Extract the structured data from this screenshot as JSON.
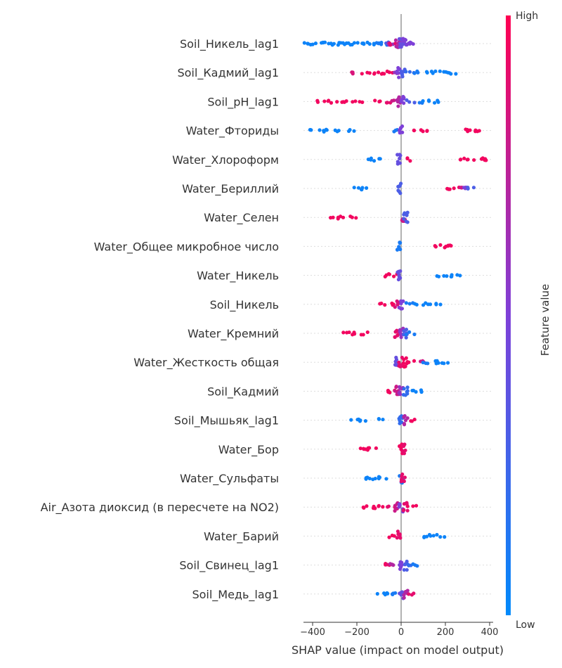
{
  "chart_data": {
    "type": "scatter",
    "subtype": "shap-beeswarm",
    "title": "",
    "xlabel": "SHAP value (impact on model output)",
    "ylabel": "",
    "xlim": [
      -460,
      420
    ],
    "xticks": [
      -400,
      -200,
      0,
      200,
      400
    ],
    "grid": false,
    "colorbar": {
      "title": "Feature value",
      "high_label": "High",
      "low_label": "Low",
      "colors": [
        "#008afb",
        "#7e40d8",
        "#ff0052"
      ]
    },
    "features": [
      {
        "name": "Soil_Никель_lag1",
        "points": [
          [
            -420,
            0.05
          ],
          [
            -390,
            0.05
          ],
          [
            -360,
            0.05
          ],
          [
            -330,
            0.05
          ],
          [
            -300,
            0.05
          ],
          [
            -270,
            0.05
          ],
          [
            -240,
            0.05
          ],
          [
            -210,
            0.05
          ],
          [
            -180,
            0.05
          ],
          [
            -150,
            0.05
          ],
          [
            -120,
            0.05
          ],
          [
            -100,
            0.1
          ],
          [
            -80,
            0.1
          ],
          [
            -60,
            0.3
          ],
          [
            -45,
            0.6
          ],
          [
            -30,
            0.9
          ],
          [
            -15,
            0.7
          ],
          [
            0,
            0.4
          ],
          [
            15,
            0.5
          ],
          [
            30,
            0.4
          ],
          [
            45,
            0.5
          ],
          [
            60,
            0.5
          ]
        ]
      },
      {
        "name": "Soil_Кадмий_lag1",
        "points": [
          [
            -220,
            0.85
          ],
          [
            -160,
            0.95
          ],
          [
            -120,
            0.95
          ],
          [
            -90,
            0.95
          ],
          [
            -60,
            0.95
          ],
          [
            -30,
            0.6
          ],
          [
            -10,
            0.5
          ],
          [
            10,
            0.3
          ],
          [
            40,
            0.2
          ],
          [
            80,
            0.1
          ],
          [
            120,
            0.05
          ],
          [
            160,
            0.05
          ],
          [
            200,
            0.05
          ],
          [
            230,
            0.05
          ]
        ]
      },
      {
        "name": "Soil_pH_lag1",
        "points": [
          [
            -360,
            0.95
          ],
          [
            -320,
            0.95
          ],
          [
            -280,
            0.95
          ],
          [
            -240,
            0.95
          ],
          [
            -190,
            0.95
          ],
          [
            -100,
            0.95
          ],
          [
            -60,
            0.9
          ],
          [
            -30,
            0.8
          ],
          [
            -10,
            0.7
          ],
          [
            10,
            0.5
          ],
          [
            40,
            0.3
          ],
          [
            80,
            0.1
          ],
          [
            120,
            0.05
          ],
          [
            160,
            0.05
          ]
        ]
      },
      {
        "name": "Water_Фториды",
        "points": [
          [
            -390,
            0.05
          ],
          [
            -350,
            0.05
          ],
          [
            -320,
            0.05
          ],
          [
            -280,
            0.05
          ],
          [
            -230,
            0.05
          ],
          [
            -30,
            0.1
          ],
          [
            0,
            0.5
          ],
          [
            80,
            0.95
          ],
          [
            120,
            0.95
          ],
          [
            280,
            0.95
          ],
          [
            320,
            0.95
          ],
          [
            350,
            0.95
          ]
        ]
      },
      {
        "name": "Water_Хлороформ",
        "points": [
          [
            -130,
            0.05
          ],
          [
            -100,
            0.05
          ],
          [
            -10,
            0.4
          ],
          [
            50,
            0.95
          ],
          [
            280,
            0.95
          ],
          [
            320,
            0.95
          ],
          [
            360,
            0.95
          ],
          [
            380,
            0.95
          ]
        ]
      },
      {
        "name": "Water_Бериллий",
        "points": [
          [
            -200,
            0.05
          ],
          [
            -170,
            0.05
          ],
          [
            -10,
            0.3
          ],
          [
            200,
            0.95
          ],
          [
            240,
            0.95
          ],
          [
            280,
            0.8
          ],
          [
            300,
            0.5
          ],
          [
            320,
            0.3
          ]
        ]
      },
      {
        "name": "Water_Селен",
        "points": [
          [
            -300,
            0.95
          ],
          [
            -280,
            0.95
          ],
          [
            -210,
            0.95
          ],
          [
            10,
            0.8
          ],
          [
            20,
            0.3
          ]
        ]
      },
      {
        "name": "Water_Общее микробное число",
        "points": [
          [
            -10,
            0.1
          ],
          [
            170,
            0.95
          ],
          [
            200,
            0.95
          ],
          [
            230,
            0.95
          ]
        ]
      },
      {
        "name": "Water_Никель",
        "points": [
          [
            -60,
            0.95
          ],
          [
            -40,
            0.95
          ],
          [
            -10,
            0.4
          ],
          [
            180,
            0.05
          ],
          [
            220,
            0.05
          ],
          [
            250,
            0.05
          ]
        ]
      },
      {
        "name": "Soil_Никель",
        "points": [
          [
            -80,
            0.95
          ],
          [
            -50,
            0.95
          ],
          [
            -20,
            0.85
          ],
          [
            0,
            0.5
          ],
          [
            40,
            0.1
          ],
          [
            80,
            0.05
          ],
          [
            120,
            0.05
          ],
          [
            170,
            0.05
          ]
        ]
      },
      {
        "name": "Water_Кремний",
        "points": [
          [
            -240,
            0.95
          ],
          [
            -210,
            0.95
          ],
          [
            -170,
            0.95
          ],
          [
            -20,
            0.9
          ],
          [
            0,
            0.6
          ],
          [
            20,
            0.3
          ],
          [
            40,
            0.1
          ]
        ]
      },
      {
        "name": "Water_Жесткость общая",
        "points": [
          [
            -20,
            0.4
          ],
          [
            -5,
            0.9
          ],
          [
            20,
            0.95
          ],
          [
            50,
            0.95
          ],
          [
            80,
            0.8
          ],
          [
            110,
            0.1
          ],
          [
            140,
            0.05
          ],
          [
            180,
            0.05
          ],
          [
            200,
            0.05
          ]
        ]
      },
      {
        "name": "Soil_Кадмий",
        "points": [
          [
            -70,
            0.95
          ],
          [
            -40,
            0.95
          ],
          [
            -20,
            0.8
          ],
          [
            0,
            0.6
          ],
          [
            20,
            0.2
          ],
          [
            50,
            0.05
          ],
          [
            80,
            0.05
          ]
        ]
      },
      {
        "name": "Soil_Мышьяк_lag1",
        "points": [
          [
            -210,
            0.05
          ],
          [
            -180,
            0.05
          ],
          [
            -100,
            0.05
          ],
          [
            0,
            0.2
          ],
          [
            20,
            0.7
          ],
          [
            40,
            0.95
          ]
        ]
      },
      {
        "name": "Water_Бор",
        "points": [
          [
            -190,
            0.95
          ],
          [
            -160,
            0.95
          ],
          [
            -130,
            0.95
          ],
          [
            0,
            0.95
          ],
          [
            10,
            0.9
          ]
        ]
      },
      {
        "name": "Water_Сульфаты",
        "points": [
          [
            -170,
            0.05
          ],
          [
            -140,
            0.05
          ],
          [
            -110,
            0.05
          ],
          [
            -80,
            0.05
          ],
          [
            0,
            0.1
          ],
          [
            10,
            0.9
          ]
        ]
      },
      {
        "name": "Air_Азота диоксид (в пересчете на NO2)",
        "points": [
          [
            -160,
            0.95
          ],
          [
            -110,
            0.95
          ],
          [
            -80,
            0.95
          ],
          [
            -50,
            0.9
          ],
          [
            -20,
            0.8
          ],
          [
            0,
            0.5
          ],
          [
            20,
            0.9
          ],
          [
            50,
            0.95
          ]
        ]
      },
      {
        "name": "Water_Барий",
        "points": [
          [
            -40,
            0.95
          ],
          [
            -10,
            0.9
          ],
          [
            110,
            0.05
          ],
          [
            150,
            0.05
          ],
          [
            180,
            0.05
          ]
        ]
      },
      {
        "name": "Soil_Свинец_lag1",
        "points": [
          [
            -90,
            0.95
          ],
          [
            -60,
            0.9
          ],
          [
            -30,
            0.7
          ],
          [
            0,
            0.5
          ],
          [
            20,
            0.3
          ],
          [
            50,
            0.2
          ],
          [
            70,
            0.1
          ]
        ]
      },
      {
        "name": "Soil_Медь_lag1",
        "points": [
          [
            -90,
            0.05
          ],
          [
            -60,
            0.05
          ],
          [
            -30,
            0.1
          ],
          [
            0,
            0.4
          ],
          [
            20,
            0.7
          ],
          [
            40,
            0.9
          ]
        ]
      }
    ]
  }
}
